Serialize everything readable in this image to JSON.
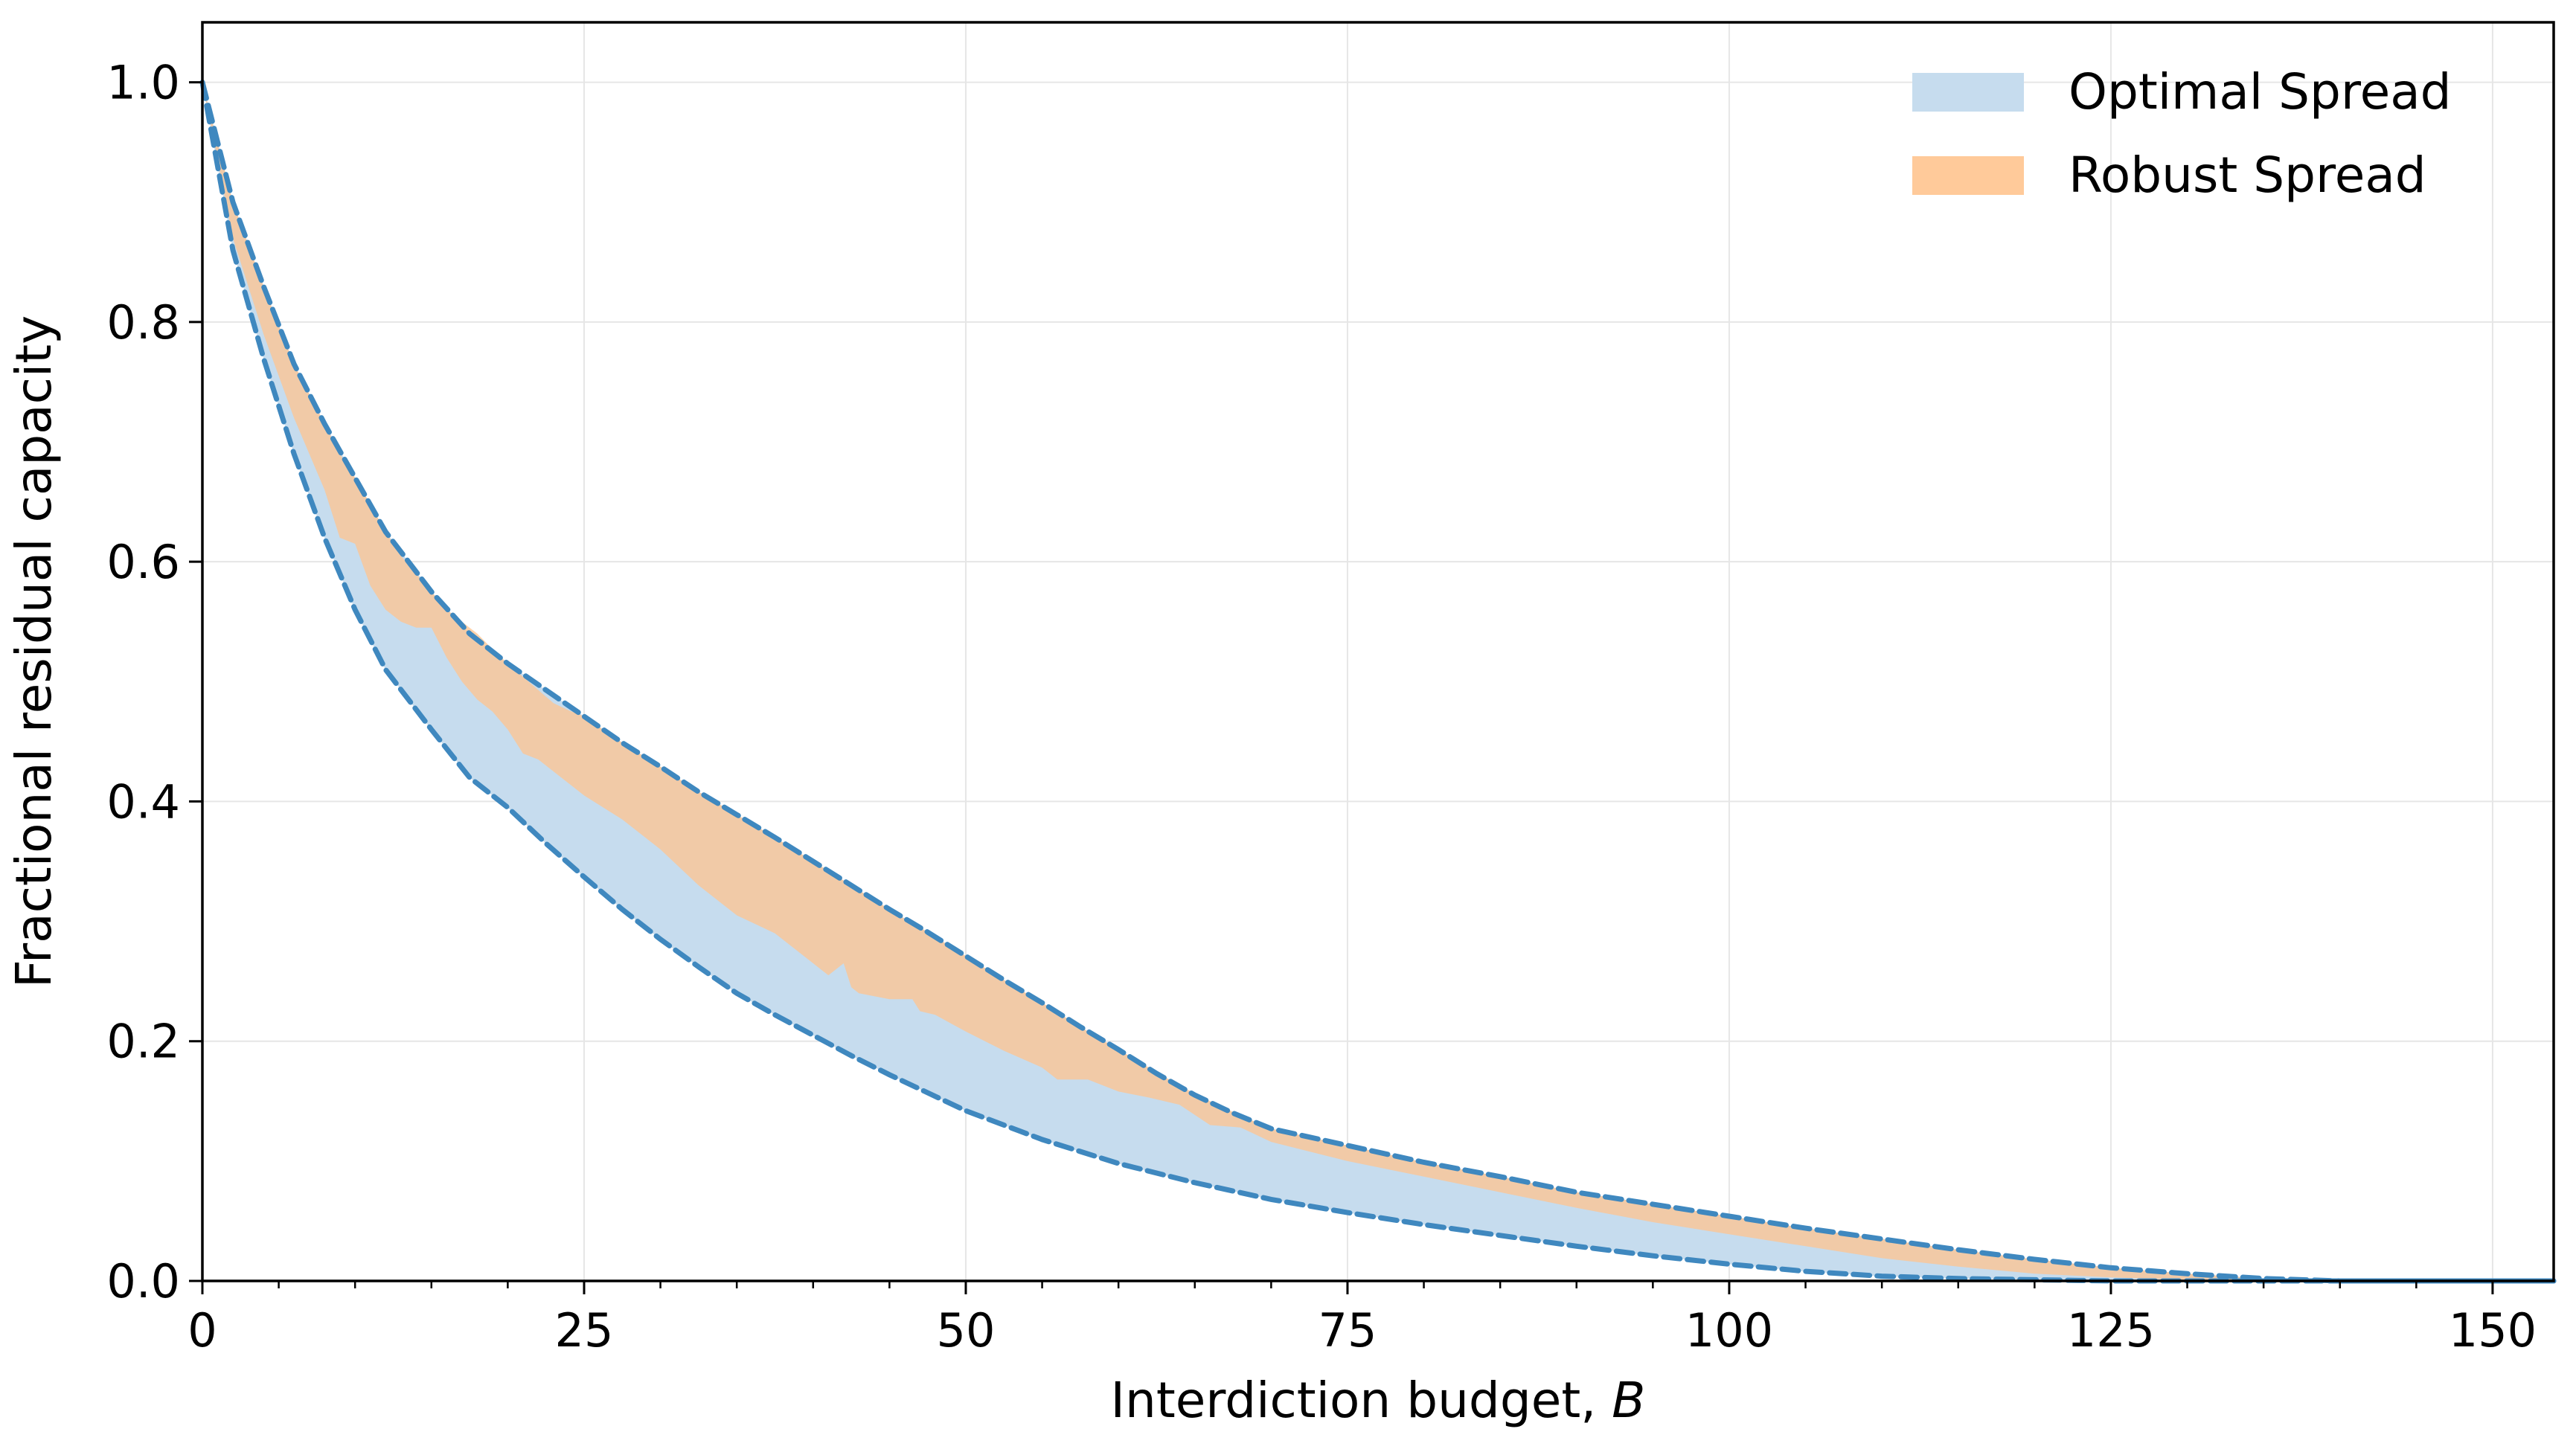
{
  "chart_data": {
    "type": "area",
    "title": "",
    "xlabel": "Interdiction budget, ",
    "xlabel_var": "B",
    "ylabel": "Fractional residual capacity",
    "xlim": [
      0,
      154
    ],
    "ylim": [
      0,
      1.05
    ],
    "xticks": [
      0,
      25,
      50,
      75,
      100,
      125,
      150
    ],
    "xtick_labels": [
      "0",
      "25",
      "50",
      "75",
      "100",
      "125",
      "150"
    ],
    "yticks": [
      0.0,
      0.2,
      0.4,
      0.6,
      0.8,
      1.0
    ],
    "ytick_labels": [
      "0.0",
      "0.2",
      "0.4",
      "0.6",
      "0.8",
      "1.0"
    ],
    "grid": true,
    "legend_position": "top-right",
    "colors": {
      "optimal_fill": "#c6dcee",
      "robust_fill": "#ffc48f",
      "dashed_line": "#3f88bf",
      "overlap_fill": "#e2b38c"
    },
    "series": [
      {
        "name": "Optimal Spread",
        "x": [
          0,
          2,
          4,
          6,
          8,
          10,
          12,
          15,
          17.5,
          20,
          22.5,
          25,
          27.5,
          30,
          32.5,
          35,
          37.5,
          40,
          42.5,
          45,
          47.5,
          50,
          52.5,
          55,
          57.5,
          60,
          62.5,
          65,
          67.5,
          70,
          75,
          80,
          85,
          90,
          95,
          100,
          105,
          110,
          115,
          120,
          125,
          130,
          135,
          140,
          145,
          150,
          154
        ],
        "lower": [
          1.0,
          0.86,
          0.77,
          0.69,
          0.62,
          0.56,
          0.51,
          0.46,
          0.42,
          0.395,
          0.365,
          0.337,
          0.31,
          0.285,
          0.262,
          0.24,
          0.222,
          0.205,
          0.188,
          0.172,
          0.157,
          0.142,
          0.13,
          0.118,
          0.108,
          0.098,
          0.09,
          0.082,
          0.075,
          0.068,
          0.057,
          0.047,
          0.038,
          0.029,
          0.021,
          0.014,
          0.008,
          0.004,
          0.002,
          0.001,
          0.0,
          0.0,
          0.0,
          0.0,
          0.0,
          0.0,
          0.0
        ],
        "upper": [
          1.0,
          0.9,
          0.83,
          0.765,
          0.715,
          0.67,
          0.625,
          0.575,
          0.54,
          0.515,
          0.493,
          0.471,
          0.449,
          0.429,
          0.408,
          0.389,
          0.37,
          0.35,
          0.33,
          0.31,
          0.291,
          0.271,
          0.251,
          0.232,
          0.212,
          0.193,
          0.173,
          0.155,
          0.14,
          0.127,
          0.113,
          0.099,
          0.087,
          0.074,
          0.064,
          0.054,
          0.044,
          0.035,
          0.026,
          0.018,
          0.011,
          0.006,
          0.002,
          0.0,
          0.0,
          0.0,
          0.0
        ]
      },
      {
        "name": "Robust Spread",
        "x": [
          0,
          2,
          4,
          6,
          8,
          9,
          10,
          11,
          12,
          13,
          14,
          15,
          16,
          17,
          18,
          19,
          20,
          21,
          22,
          23,
          24,
          25,
          27.5,
          30,
          32.5,
          35,
          37.5,
          39,
          40,
          41,
          42,
          42.5,
          43,
          45,
          46.5,
          47,
          48,
          50,
          52.5,
          55,
          56,
          58,
          60,
          62,
          64,
          66,
          68,
          70,
          75,
          80,
          85,
          90,
          95,
          100,
          105,
          110,
          115,
          120,
          125,
          130,
          135,
          140,
          154
        ],
        "lower": [
          1.0,
          0.87,
          0.79,
          0.72,
          0.66,
          0.62,
          0.615,
          0.58,
          0.56,
          0.55,
          0.545,
          0.545,
          0.52,
          0.5,
          0.485,
          0.475,
          0.46,
          0.44,
          0.435,
          0.425,
          0.415,
          0.405,
          0.385,
          0.36,
          0.33,
          0.305,
          0.29,
          0.275,
          0.265,
          0.255,
          0.265,
          0.245,
          0.24,
          0.235,
          0.235,
          0.225,
          0.222,
          0.208,
          0.192,
          0.178,
          0.168,
          0.168,
          0.158,
          0.153,
          0.147,
          0.13,
          0.128,
          0.116,
          0.1,
          0.087,
          0.074,
          0.061,
          0.049,
          0.039,
          0.029,
          0.019,
          0.012,
          0.006,
          0.003,
          0.001,
          0.0,
          0.0,
          0.0
        ],
        "upper": [
          1.0,
          0.9,
          0.83,
          0.765,
          0.715,
          0.69,
          0.67,
          0.648,
          0.625,
          0.605,
          0.59,
          0.575,
          0.56,
          0.55,
          0.54,
          0.527,
          0.515,
          0.504,
          0.493,
          0.482,
          0.476,
          0.471,
          0.449,
          0.429,
          0.408,
          0.389,
          0.37,
          0.358,
          0.35,
          0.342,
          0.334,
          0.33,
          0.326,
          0.31,
          0.298,
          0.295,
          0.287,
          0.271,
          0.251,
          0.232,
          0.224,
          0.208,
          0.193,
          0.178,
          0.163,
          0.15,
          0.138,
          0.127,
          0.113,
          0.099,
          0.087,
          0.074,
          0.064,
          0.054,
          0.044,
          0.035,
          0.026,
          0.018,
          0.011,
          0.006,
          0.002,
          0.0,
          0.0
        ]
      }
    ]
  }
}
